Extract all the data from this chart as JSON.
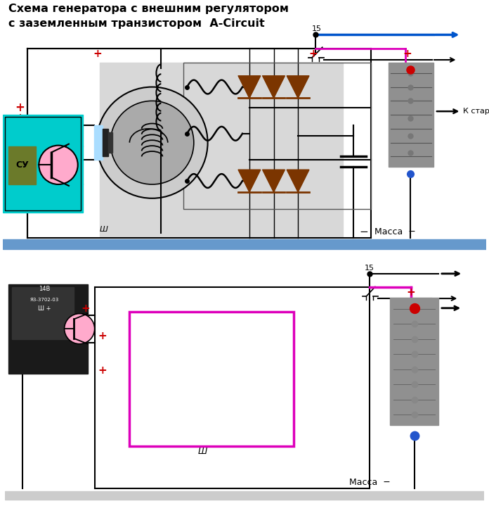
{
  "title_line1": "Схема генератора с внешним регулятором",
  "title_line2": "с заземленным транзистором  A-Circuit",
  "title_fontsize": 11.5,
  "bg_color": "#ffffff",
  "gray_box_color": "#d8d8d8",
  "cyan_box_color": "#00cccc",
  "blue_bar_color": "#6699cc",
  "diode_color": "#7b3500",
  "arrow_blue": "#0055cc",
  "arrow_magenta": "#dd00bb",
  "text_color": "#000000",
  "red_color": "#cc0000",
  "label_massa": "Масса  −",
  "label_15": "15",
  "label_k_starter": "К стартеру",
  "label_Sh": "Ш",
  "connector_color": "#909090",
  "regulator_dark": "#1a1a1a",
  "regulator_medium": "#333333"
}
